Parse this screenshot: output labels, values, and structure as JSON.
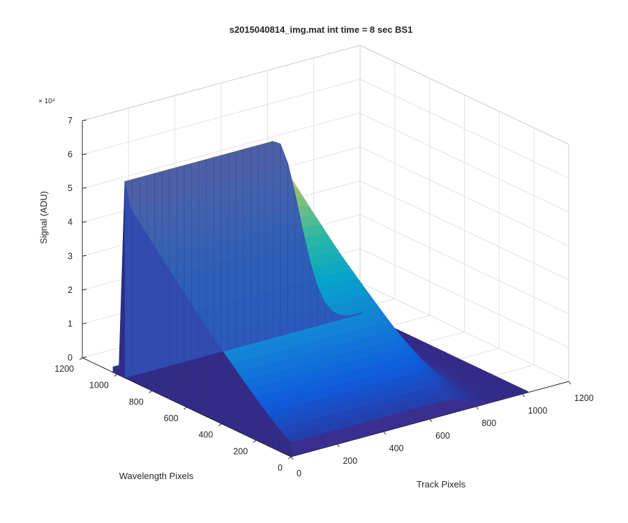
{
  "chart_data": {
    "type": "surface",
    "title": "s2015040814_img.mat int time = 8 sec   BS1",
    "xlabel": "Track Pixels",
    "ylabel": "Wavelength Pixels",
    "zlabel": "Signal (ADU)",
    "z_exponent_label": "× 10⁴",
    "xlim": [
      0,
      1200
    ],
    "ylim": [
      0,
      1200
    ],
    "zlim": [
      0,
      70000
    ],
    "x_ticks": [
      "0",
      "200",
      "400",
      "600",
      "800",
      "1000",
      "1200"
    ],
    "y_ticks": [
      "0",
      "200",
      "400",
      "600",
      "800",
      "1000",
      "1200"
    ],
    "z_ticks": [
      "0",
      "1",
      "2",
      "3",
      "4",
      "5",
      "6",
      "7"
    ],
    "colormap": "parula",
    "grid": true,
    "surface": {
      "x_range": [
        0,
        1024
      ],
      "y_range": [
        0,
        1024
      ],
      "plateau_signal": 53000,
      "peak_signal": 58000,
      "track_falloff_start": 650,
      "wavelength_edge_dropoff": 960
    }
  }
}
